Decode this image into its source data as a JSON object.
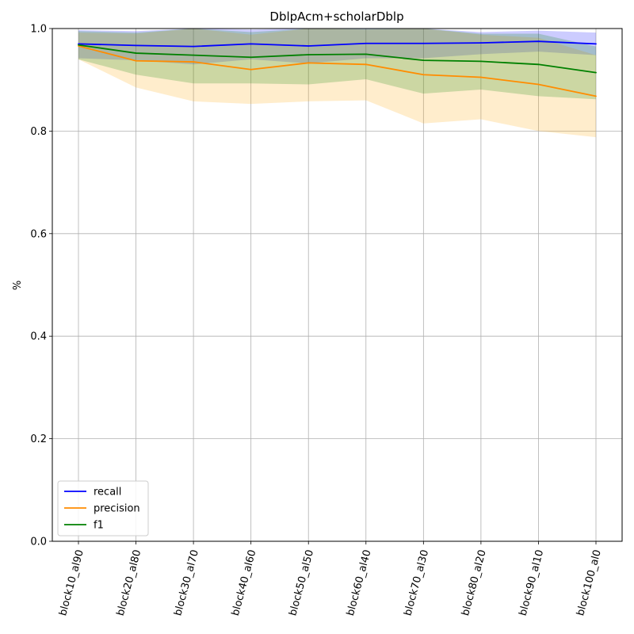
{
  "chart_data": {
    "type": "line",
    "title": "DblpAcm+scholarDblp",
    "xlabel": "",
    "ylabel": "%",
    "ylim": [
      0.0,
      1.0
    ],
    "yticks": [
      0.0,
      0.2,
      0.4,
      0.6,
      0.8,
      1.0
    ],
    "ytick_labels": [
      "0.0",
      "0.2",
      "0.4",
      "0.6",
      "0.8",
      "1.0"
    ],
    "grid": true,
    "legend_position": "lower-left",
    "categories": [
      "block10_al90",
      "block20_al80",
      "block30_al70",
      "block40_al60",
      "block50_al50",
      "block60_al40",
      "block70_al30",
      "block80_al20",
      "block90_al10",
      "block100_al0"
    ],
    "series": [
      {
        "name": "recall",
        "color": "#0000ff",
        "values": [
          0.97,
          0.967,
          0.965,
          0.97,
          0.966,
          0.971,
          0.971,
          0.972,
          0.975,
          0.97
        ],
        "band_upper": [
          0.997,
          0.995,
          1.0,
          0.998,
          1.0,
          1.0,
          1.0,
          0.993,
          0.996,
          0.992
        ],
        "band_lower": [
          0.942,
          0.938,
          0.93,
          0.94,
          0.932,
          0.942,
          0.942,
          0.95,
          0.955,
          0.948
        ]
      },
      {
        "name": "precision",
        "color": "#ff8c00",
        "values": [
          0.966,
          0.937,
          0.935,
          0.92,
          0.933,
          0.93,
          0.91,
          0.905,
          0.891,
          0.868
        ],
        "band_upper": [
          0.992,
          0.99,
          1.0,
          0.988,
          1.0,
          0.998,
          1.0,
          0.988,
          0.982,
          0.948
        ],
        "band_lower": [
          0.94,
          0.885,
          0.858,
          0.853,
          0.858,
          0.86,
          0.815,
          0.823,
          0.8,
          0.788
        ]
      },
      {
        "name": "f1",
        "color": "#008000",
        "values": [
          0.968,
          0.952,
          0.948,
          0.944,
          0.949,
          0.95,
          0.938,
          0.936,
          0.93,
          0.914
        ],
        "band_upper": [
          0.995,
          0.992,
          1.0,
          0.993,
          1.0,
          0.999,
          1.0,
          0.99,
          0.99,
          0.965
        ],
        "band_lower": [
          0.94,
          0.91,
          0.893,
          0.893,
          0.891,
          0.901,
          0.873,
          0.881,
          0.868,
          0.862
        ]
      }
    ]
  }
}
